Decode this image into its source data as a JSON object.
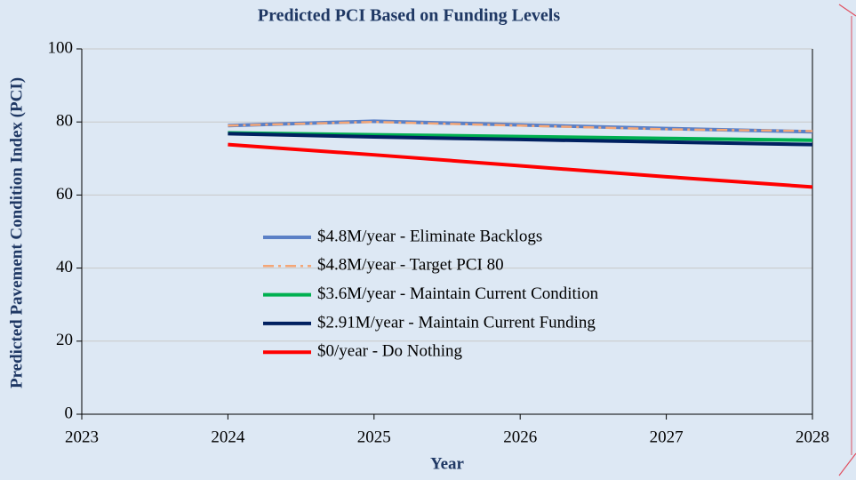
{
  "chart_data": {
    "type": "line",
    "title": "Predicted PCI Based on Funding Levels",
    "xlabel": "Year",
    "ylabel": "Predicted Pavement Condition Index (PCI)",
    "x": [
      2024,
      2025,
      2026,
      2027,
      2028
    ],
    "series": [
      {
        "name": "$4.8M/year - Eliminate Backlogs",
        "color": "#5b80c6",
        "linestyle": "solid",
        "values": [
          79,
          80.2,
          79.2,
          78.2,
          77.3
        ]
      },
      {
        "name": "$4.8M/year - Target PCI 80",
        "color": "#f4a676",
        "linestyle": "dashdot",
        "values": [
          79,
          80,
          79,
          78,
          77.5
        ]
      },
      {
        "name": "$3.6M/year - Maintain Current Condition",
        "color": "#00b050",
        "linestyle": "solid",
        "values": [
          77,
          76.5,
          76,
          75.5,
          75
        ]
      },
      {
        "name": "$2.91M/year - Maintain Current Funding",
        "color": "#002060",
        "linestyle": "solid",
        "values": [
          76.8,
          75.9,
          75.2,
          74.5,
          73.8
        ]
      },
      {
        "name": "$0/year - Do Nothing",
        "color": "#ff0000",
        "linestyle": "solid",
        "values": [
          73.8,
          71,
          68,
          65,
          62.2
        ]
      }
    ],
    "xlim": [
      2023,
      2028
    ],
    "xticks": [
      2023,
      2024,
      2025,
      2026,
      2027,
      2028
    ],
    "ylim": [
      0,
      100
    ],
    "yticks": [
      0,
      20,
      40,
      60,
      80,
      100
    ],
    "grid": true
  }
}
